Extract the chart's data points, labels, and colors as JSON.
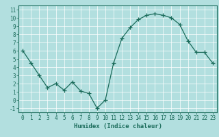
{
  "x": [
    0,
    1,
    2,
    3,
    4,
    5,
    6,
    7,
    8,
    9,
    10,
    11,
    12,
    13,
    14,
    15,
    16,
    17,
    18,
    19,
    20,
    21,
    22,
    23
  ],
  "y": [
    6.0,
    4.5,
    3.0,
    1.5,
    2.0,
    1.2,
    2.2,
    1.1,
    0.8,
    -1.0,
    0.0,
    4.5,
    7.5,
    8.8,
    9.8,
    10.3,
    10.5,
    10.3,
    10.0,
    9.2,
    7.2,
    5.8,
    5.8,
    4.5
  ],
  "xlabel": "Humidex (Indice chaleur)",
  "xlim": [
    -0.5,
    23.5
  ],
  "ylim": [
    -1.5,
    11.5
  ],
  "yticks": [
    -1,
    0,
    1,
    2,
    3,
    4,
    5,
    6,
    7,
    8,
    9,
    10,
    11
  ],
  "xticks": [
    0,
    1,
    2,
    3,
    4,
    5,
    6,
    7,
    8,
    9,
    10,
    11,
    12,
    13,
    14,
    15,
    16,
    17,
    18,
    19,
    20,
    21,
    22,
    23
  ],
  "line_color": "#1a6b5a",
  "marker": "+",
  "marker_size": 4,
  "bg_color": "#b2dfdf",
  "grid_color": "#ffffff",
  "label_fontsize": 6.5,
  "tick_fontsize": 5.5
}
